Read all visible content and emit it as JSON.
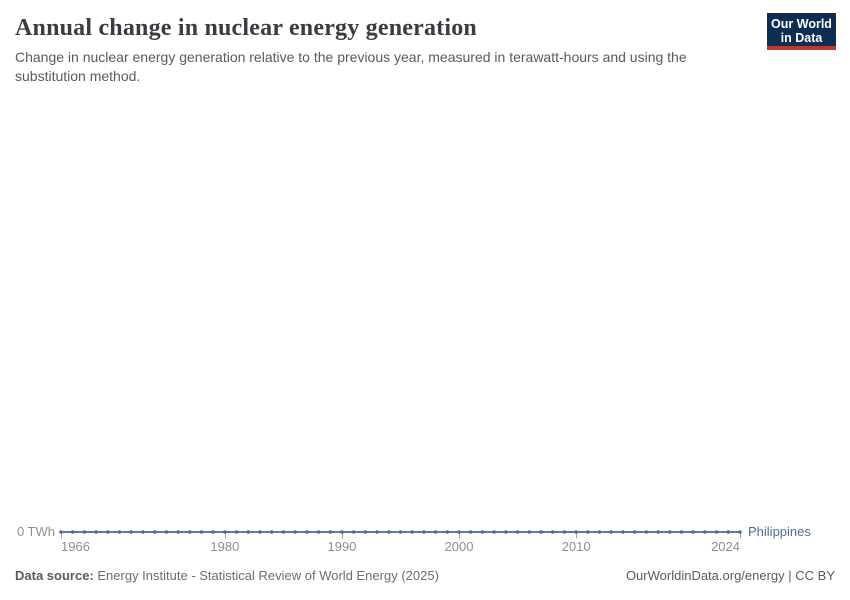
{
  "header": {
    "title": "Annual change in nuclear energy generation",
    "subtitle": "Change in nuclear energy generation relative to the previous year, measured in terawatt-hours and using the substitution method."
  },
  "logo": {
    "line1": "Our World",
    "line2": "in Data",
    "bg_color": "#0d2e52",
    "accent_color": "#c0392b"
  },
  "chart_data": {
    "type": "line",
    "title": "Annual change in nuclear energy generation",
    "unit": "TWh",
    "x_start": 1966,
    "x_end": 2024,
    "x_ticks": [
      1966,
      1980,
      1990,
      2000,
      2010,
      2024
    ],
    "y_zero_label": "0 TWh",
    "grid": false,
    "legend_position": "right-of-line-end",
    "series": [
      {
        "name": "Philippines",
        "color": "#4c6a9c",
        "values": [
          0,
          0,
          0,
          0,
          0,
          0,
          0,
          0,
          0,
          0,
          0,
          0,
          0,
          0,
          0,
          0,
          0,
          0,
          0,
          0,
          0,
          0,
          0,
          0,
          0,
          0,
          0,
          0,
          0,
          0,
          0,
          0,
          0,
          0,
          0,
          0,
          0,
          0,
          0,
          0,
          0,
          0,
          0,
          0,
          0,
          0,
          0,
          0,
          0,
          0,
          0,
          0,
          0,
          0,
          0,
          0,
          0,
          0,
          0
        ]
      }
    ]
  },
  "footer": {
    "source_label": "Data source:",
    "source_text": "Energy Institute - Statistical Review of World Energy (2025)",
    "credit": "OurWorldinData.org/energy | CC BY"
  }
}
